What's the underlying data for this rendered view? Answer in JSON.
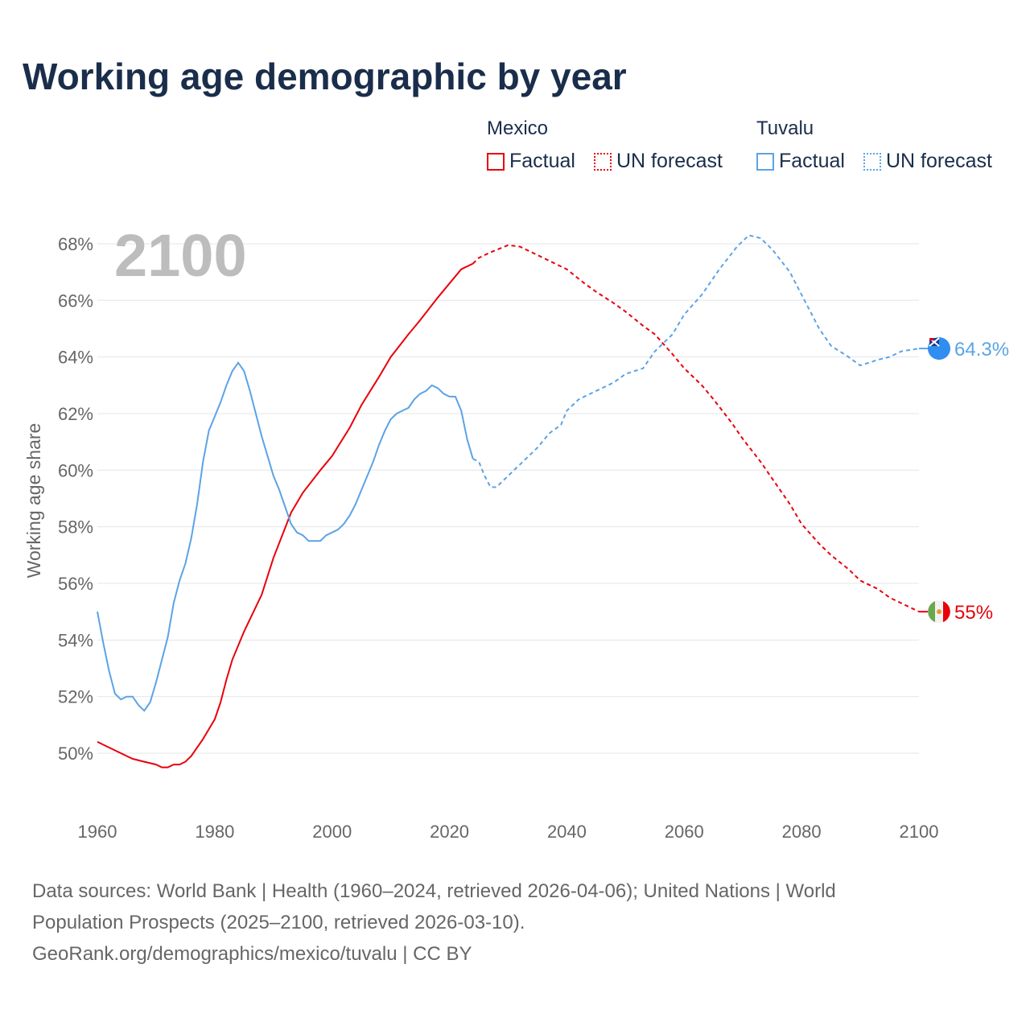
{
  "title": "Working age demographic by year",
  "legend": {
    "groups": [
      {
        "name": "Mexico",
        "factual": "Factual",
        "forecast": "UN forecast",
        "color": "#e8000b"
      },
      {
        "name": "Tuvalu",
        "factual": "Factual",
        "forecast": "UN forecast",
        "color": "#5ba3e6"
      }
    ]
  },
  "footer": {
    "line1": "Data sources: World Bank | Health (1960–2024, retrieved 2026-04-06); United Nations | World",
    "line2": "Population Prospects (2025–2100, retrieved 2026-03-10).",
    "line3": "GeoRank.org/demographics/mexico/tuvalu | CC BY"
  },
  "chart_data": {
    "type": "line",
    "title": "Working age demographic by year",
    "year_label": "2100",
    "xlabel": "",
    "ylabel": "Working age share",
    "xlim": [
      1960,
      2100
    ],
    "ylim": [
      48,
      68.5
    ],
    "xticks": [
      1960,
      1980,
      2000,
      2020,
      2040,
      2060,
      2080,
      2100
    ],
    "yticks": [
      50,
      52,
      54,
      56,
      58,
      60,
      62,
      64,
      66,
      68
    ],
    "ytick_labels": [
      "50%",
      "52%",
      "54%",
      "56%",
      "58%",
      "60%",
      "62%",
      "64%",
      "66%",
      "68%"
    ],
    "grid": true,
    "factual_end": 2024,
    "series": [
      {
        "name": "Mexico",
        "color": "#e8000b",
        "end_label": "55%",
        "x": [
          1960,
          1963,
          1966,
          1968,
          1970,
          1971,
          1972,
          1973,
          1974,
          1975,
          1976,
          1978,
          1980,
          1981,
          1982,
          1983,
          1985,
          1988,
          1990,
          1993,
          1995,
          1998,
          2000,
          2003,
          2005,
          2008,
          2010,
          2013,
          2015,
          2018,
          2020,
          2022,
          2024,
          2025,
          2027,
          2030,
          2032,
          2035,
          2038,
          2040,
          2043,
          2045,
          2048,
          2050,
          2053,
          2055,
          2058,
          2060,
          2063,
          2065,
          2068,
          2070,
          2073,
          2075,
          2078,
          2080,
          2083,
          2085,
          2088,
          2090,
          2093,
          2095,
          2098,
          2100
        ],
        "y": [
          50.4,
          50.1,
          49.8,
          49.7,
          49.6,
          49.5,
          49.5,
          49.6,
          49.6,
          49.7,
          49.9,
          50.5,
          51.2,
          51.8,
          52.6,
          53.3,
          54.3,
          55.6,
          56.9,
          58.5,
          59.2,
          60.0,
          60.5,
          61.5,
          62.3,
          63.3,
          64.0,
          64.8,
          65.3,
          66.1,
          66.6,
          67.1,
          67.3,
          67.5,
          67.7,
          67.95,
          67.9,
          67.6,
          67.3,
          67.1,
          66.6,
          66.3,
          65.9,
          65.6,
          65.1,
          64.8,
          64.1,
          63.6,
          63.0,
          62.5,
          61.7,
          61.1,
          60.3,
          59.7,
          58.8,
          58.1,
          57.4,
          57.0,
          56.5,
          56.1,
          55.8,
          55.5,
          55.2,
          55.0
        ]
      },
      {
        "name": "Tuvalu",
        "color": "#5ba3e6",
        "end_label": "64.3%",
        "x": [
          1960,
          1961,
          1962,
          1963,
          1964,
          1965,
          1966,
          1967,
          1968,
          1969,
          1970,
          1971,
          1972,
          1973,
          1974,
          1975,
          1976,
          1977,
          1978,
          1979,
          1980,
          1981,
          1982,
          1983,
          1984,
          1985,
          1986,
          1987,
          1988,
          1989,
          1990,
          1991,
          1992,
          1993,
          1994,
          1995,
          1996,
          1997,
          1998,
          1999,
          2000,
          2001,
          2002,
          2003,
          2004,
          2005,
          2006,
          2007,
          2008,
          2009,
          2010,
          2011,
          2012,
          2013,
          2014,
          2015,
          2016,
          2017,
          2018,
          2019,
          2020,
          2021,
          2022,
          2023,
          2024,
          2025,
          2026,
          2027,
          2028,
          2030,
          2032,
          2035,
          2037,
          2039,
          2040,
          2042,
          2045,
          2048,
          2050,
          2053,
          2055,
          2058,
          2060,
          2063,
          2066,
          2069,
          2071,
          2073,
          2075,
          2078,
          2080,
          2083,
          2085,
          2088,
          2090,
          2093,
          2095,
          2097,
          2100
        ],
        "y": [
          55.0,
          53.9,
          52.9,
          52.1,
          51.9,
          52.0,
          52.0,
          51.7,
          51.5,
          51.8,
          52.5,
          53.3,
          54.1,
          55.3,
          56.1,
          56.7,
          57.6,
          58.8,
          60.3,
          61.4,
          61.9,
          62.4,
          63.0,
          63.5,
          63.8,
          63.5,
          62.8,
          62.0,
          61.2,
          60.5,
          59.8,
          59.3,
          58.7,
          58.1,
          57.8,
          57.7,
          57.5,
          57.5,
          57.5,
          57.7,
          57.8,
          57.9,
          58.1,
          58.4,
          58.8,
          59.3,
          59.8,
          60.3,
          60.9,
          61.4,
          61.8,
          62.0,
          62.1,
          62.2,
          62.5,
          62.7,
          62.8,
          63.0,
          62.9,
          62.7,
          62.6,
          62.6,
          62.1,
          61.1,
          60.4,
          60.3,
          59.8,
          59.4,
          59.4,
          59.8,
          60.2,
          60.8,
          61.3,
          61.6,
          62.1,
          62.5,
          62.8,
          63.1,
          63.4,
          63.6,
          64.2,
          64.8,
          65.5,
          66.2,
          67.1,
          67.9,
          68.3,
          68.2,
          67.8,
          67.0,
          66.2,
          65.0,
          64.4,
          64.0,
          63.7,
          63.9,
          64.0,
          64.2,
          64.3
        ]
      }
    ]
  }
}
